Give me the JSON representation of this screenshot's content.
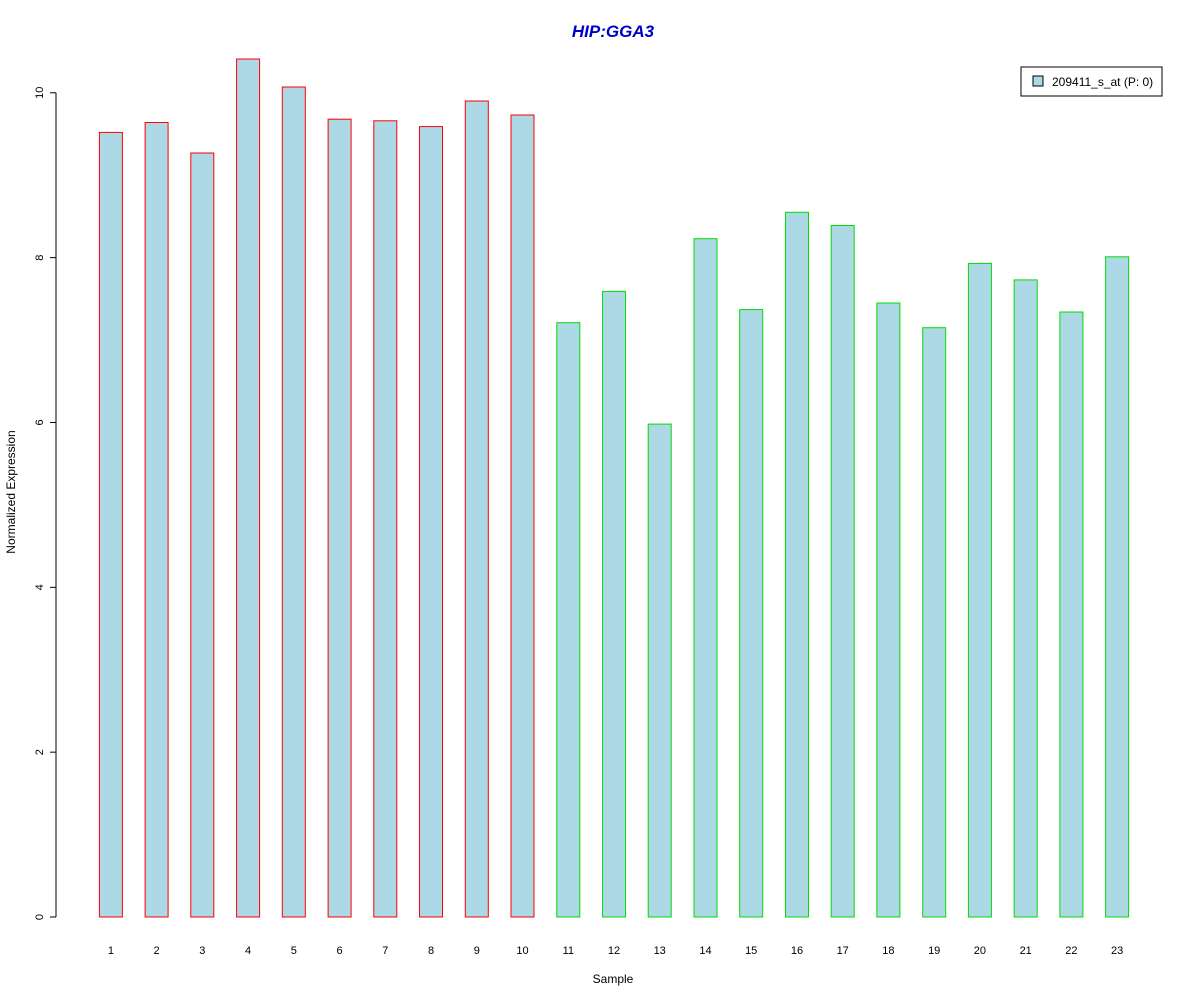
{
  "chart_data": {
    "type": "bar",
    "title": "HIP:GGA3",
    "xlabel": "Sample",
    "ylabel": "Normalized Expression",
    "categories": [
      "1",
      "2",
      "3",
      "4",
      "5",
      "6",
      "7",
      "8",
      "9",
      "10",
      "11",
      "12",
      "13",
      "14",
      "15",
      "16",
      "17",
      "18",
      "19",
      "20",
      "21",
      "22",
      "23"
    ],
    "series": [
      {
        "name": "209411_s_at (P: 0)",
        "values": [
          9.52,
          9.64,
          9.27,
          10.41,
          10.07,
          9.68,
          9.66,
          9.59,
          9.9,
          9.73,
          7.21,
          7.59,
          5.98,
          8.23,
          7.37,
          8.55,
          8.39,
          7.45,
          7.15,
          7.93,
          7.73,
          7.34,
          8.01
        ]
      }
    ],
    "group_outline_colors": [
      "#ff0000",
      "#ff0000",
      "#ff0000",
      "#ff0000",
      "#ff0000",
      "#ff0000",
      "#ff0000",
      "#ff0000",
      "#ff0000",
      "#ff0000",
      "#00dd00",
      "#00dd00",
      "#00dd00",
      "#00dd00",
      "#00dd00",
      "#00dd00",
      "#00dd00",
      "#00dd00",
      "#00dd00",
      "#00dd00",
      "#00dd00",
      "#00dd00",
      "#00dd00"
    ],
    "bar_fill_color": "#add8e6",
    "title_color": "#0000cc",
    "yticks": [
      0,
      2,
      4,
      6,
      8,
      10
    ],
    "ylim": [
      0,
      10.41
    ],
    "grid": false,
    "legend_position": "top-right"
  }
}
